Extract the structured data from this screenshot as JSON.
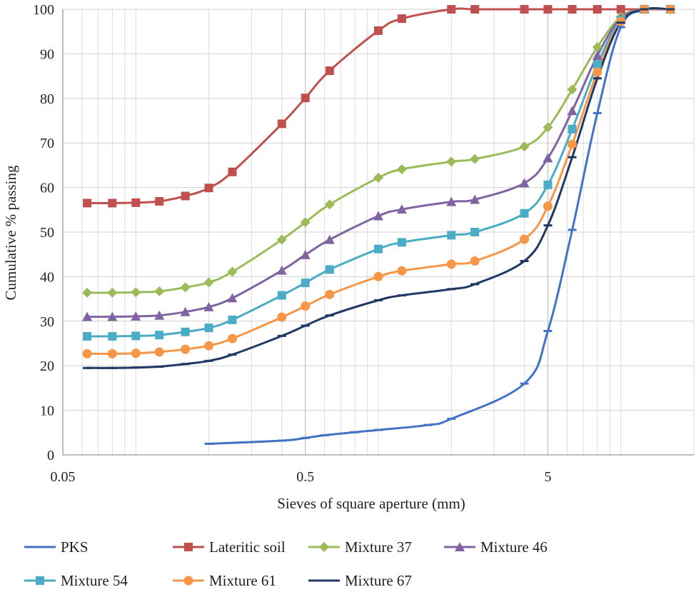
{
  "chart_data": {
    "type": "line",
    "title": "",
    "xlabel": "Sieves of square aperture (mm)",
    "ylabel": "Cumulative % passing",
    "x_scale": "log",
    "xlim": [
      0.05,
      20
    ],
    "ylim": [
      0,
      100
    ],
    "x_ticks": [
      {
        "value": 0.05,
        "label": "0.05"
      },
      {
        "value": 0.5,
        "label": "0.5"
      },
      {
        "value": 5,
        "label": "5"
      }
    ],
    "y_ticks": [
      0,
      10,
      20,
      30,
      40,
      50,
      60,
      70,
      80,
      90,
      100
    ],
    "grid": true,
    "legend_position": "bottom",
    "series": [
      {
        "name": "PKS",
        "color": "#4472C4",
        "marker": "dash",
        "x": [
          0.2,
          0.4,
          0.5,
          0.6,
          0.8,
          1.0,
          1.6,
          2.0,
          4.0,
          5.0,
          6.3,
          8.0,
          10.0,
          12.5,
          16.0
        ],
        "y": [
          2.5,
          3.2,
          3.8,
          4.4,
          5.1,
          5.6,
          6.7,
          8.1,
          16.0,
          27.8,
          50.5,
          76.7,
          96.0,
          99.8,
          100
        ]
      },
      {
        "name": "Lateritic soil",
        "color": "#C0504D",
        "marker": "square",
        "x": [
          0.063,
          0.08,
          0.1,
          0.125,
          0.16,
          0.2,
          0.25,
          0.4,
          0.5,
          0.63,
          1.0,
          1.25,
          2.0,
          2.5,
          4.0,
          5.0,
          6.3,
          8.0,
          10.0,
          12.5,
          16.0
        ],
        "y": [
          56.5,
          56.5,
          56.6,
          56.9,
          58.1,
          59.9,
          63.5,
          74.3,
          80.1,
          86.2,
          95.2,
          97.9,
          100,
          100,
          100,
          100,
          100,
          100,
          100,
          100,
          100
        ]
      },
      {
        "name": "Mixture 37",
        "color": "#9BBB59",
        "marker": "diamond",
        "x": [
          0.063,
          0.08,
          0.1,
          0.125,
          0.16,
          0.2,
          0.25,
          0.4,
          0.5,
          0.63,
          1.0,
          1.25,
          2.0,
          2.5,
          4.0,
          5.0,
          6.3,
          8.0,
          10.0,
          12.5,
          16.0
        ],
        "y": [
          36.4,
          36.4,
          36.5,
          36.7,
          37.6,
          38.7,
          41.1,
          48.3,
          52.2,
          56.2,
          62.2,
          64.1,
          65.8,
          66.4,
          69.2,
          73.5,
          82.0,
          91.5,
          98.3,
          100,
          100
        ]
      },
      {
        "name": "Mixture 46",
        "color": "#8064A2",
        "marker": "triangle",
        "x": [
          0.063,
          0.08,
          0.1,
          0.125,
          0.16,
          0.2,
          0.25,
          0.4,
          0.5,
          0.63,
          1.0,
          1.25,
          2.0,
          2.5,
          4.0,
          5.0,
          6.3,
          8.0,
          10.0,
          12.5,
          16.0
        ],
        "y": [
          31.0,
          31.0,
          31.1,
          31.3,
          32.1,
          33.2,
          35.2,
          41.4,
          44.9,
          48.3,
          53.6,
          55.1,
          56.8,
          57.3,
          61.0,
          66.6,
          77.2,
          89.6,
          98.0,
          100,
          100
        ]
      },
      {
        "name": "Mixture 54",
        "color": "#4BACC6",
        "marker": "square",
        "x": [
          0.063,
          0.08,
          0.1,
          0.125,
          0.16,
          0.2,
          0.25,
          0.4,
          0.5,
          0.63,
          1.0,
          1.25,
          2.0,
          2.5,
          4.0,
          5.0,
          6.3,
          8.0,
          10.0,
          12.5,
          16.0
        ],
        "y": [
          26.6,
          26.6,
          26.7,
          26.9,
          27.6,
          28.5,
          30.3,
          35.8,
          38.6,
          41.6,
          46.2,
          47.7,
          49.3,
          50.0,
          54.2,
          60.6,
          73.1,
          87.6,
          97.6,
          100,
          100
        ]
      },
      {
        "name": "Mixture 61",
        "color": "#F79646",
        "marker": "circle",
        "x": [
          0.063,
          0.08,
          0.1,
          0.125,
          0.16,
          0.2,
          0.25,
          0.4,
          0.5,
          0.63,
          1.0,
          1.25,
          2.0,
          2.5,
          4.0,
          5.0,
          6.3,
          8.0,
          10.0,
          12.5,
          16.0
        ],
        "y": [
          22.7,
          22.7,
          22.8,
          23.1,
          23.7,
          24.5,
          26.1,
          30.9,
          33.4,
          36.0,
          40.0,
          41.3,
          42.8,
          43.5,
          48.4,
          55.8,
          69.7,
          85.9,
          97.3,
          100,
          100
        ]
      },
      {
        "name": "Mixture 67",
        "color": "#1F3864",
        "marker": "dash",
        "x": [
          0.063,
          0.08,
          0.1,
          0.125,
          0.16,
          0.2,
          0.25,
          0.4,
          0.5,
          0.63,
          1.0,
          1.25,
          2.0,
          2.5,
          4.0,
          5.0,
          6.3,
          8.0,
          10.0,
          12.5,
          16.0
        ],
        "y": [
          19.5,
          19.5,
          19.6,
          19.8,
          20.4,
          21.1,
          22.5,
          26.7,
          29.0,
          31.3,
          34.7,
          35.8,
          37.2,
          38.3,
          43.5,
          51.5,
          66.8,
          84.5,
          97.0,
          100,
          100
        ]
      }
    ]
  }
}
